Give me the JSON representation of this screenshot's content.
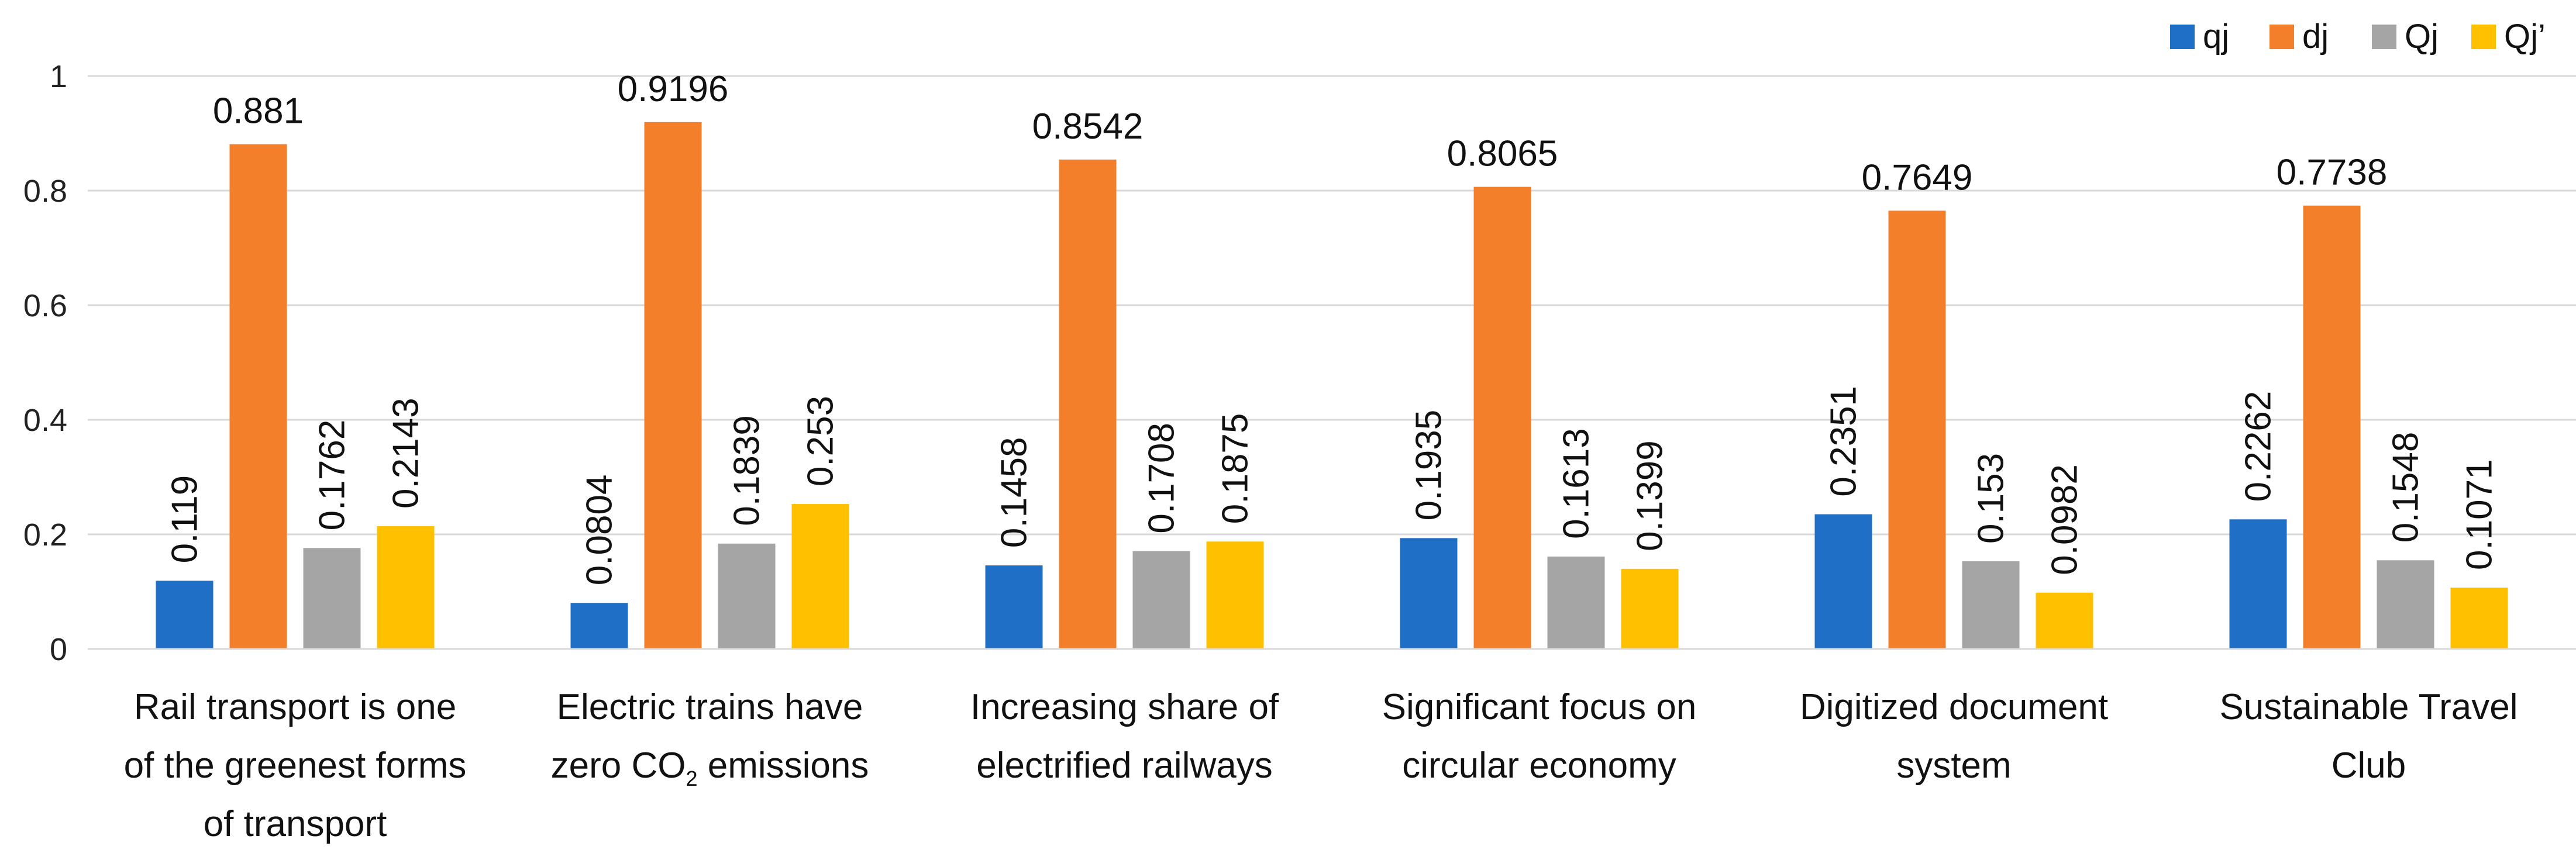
{
  "chart_data": {
    "type": "bar",
    "title": "",
    "xlabel": "",
    "ylabel": "",
    "ylim": [
      0,
      1
    ],
    "yticks": [
      "0",
      "0.2",
      "0.4",
      "0.6",
      "0.8",
      "1"
    ],
    "ytick_values": [
      0,
      0.2,
      0.4,
      0.6,
      0.8,
      1
    ],
    "grid": true,
    "legend_position": "top-right",
    "categories": [
      [
        "Rail transport is one",
        "of the greenest forms",
        "of transport"
      ],
      [
        "Electric trains have",
        "zero CO2 emissions"
      ],
      [
        "Increasing share of",
        "electrified railways"
      ],
      [
        "Significant focus on",
        "circular economy"
      ],
      [
        "Digitized document",
        "system"
      ],
      [
        "Sustainable Travel",
        "Club"
      ]
    ],
    "series": [
      {
        "name": "qj",
        "color": "#1F6FC6",
        "values": [
          0.119,
          0.0804,
          0.1458,
          0.1935,
          0.2351,
          0.2262
        ],
        "labels": [
          "0.119",
          "0.0804",
          "0.1458",
          "0.1935",
          "0.2351",
          "0.2262"
        ],
        "label_orientation": "vertical"
      },
      {
        "name": "dj",
        "color": "#F47F2B",
        "values": [
          0.881,
          0.9196,
          0.8542,
          0.8065,
          0.7649,
          0.7738
        ],
        "labels": [
          "0.881",
          "0.9196",
          "0.8542",
          "0.8065",
          "0.7649",
          "0.7738"
        ],
        "label_orientation": "horizontal"
      },
      {
        "name": "Qj",
        "color": "#A5A5A5",
        "values": [
          0.1762,
          0.1839,
          0.1708,
          0.1613,
          0.153,
          0.1548
        ],
        "labels": [
          "0.1762",
          "0.1839",
          "0.1708",
          "0.1613",
          "0.153",
          "0.1548"
        ],
        "label_orientation": "vertical"
      },
      {
        "name": "Qj’",
        "color": "#FFC000",
        "values": [
          0.2143,
          0.253,
          0.1875,
          0.1399,
          0.0982,
          0.1071
        ],
        "labels": [
          "0.2143",
          "0.253",
          "0.1875",
          "0.1399",
          "0.0982",
          "0.1071"
        ],
        "label_orientation": "vertical"
      }
    ]
  }
}
